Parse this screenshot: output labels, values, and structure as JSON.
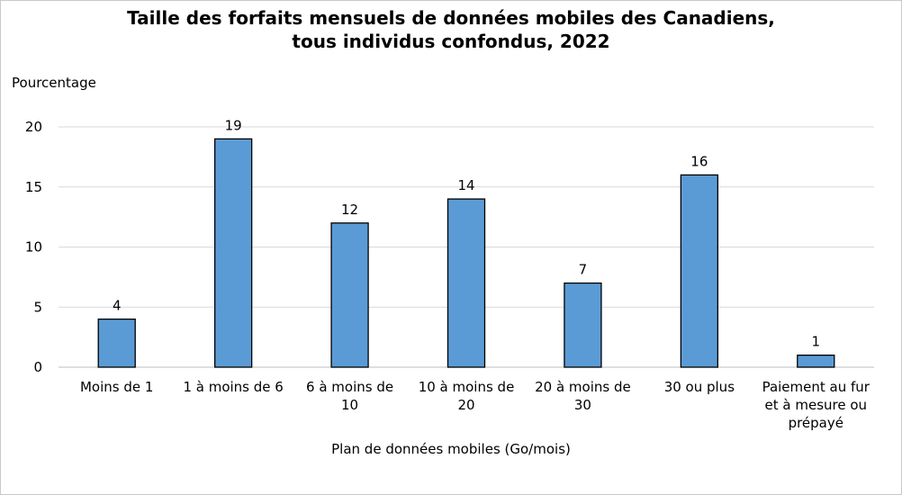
{
  "chart_data": {
    "type": "bar",
    "title_lines": [
      "Taille des forfaits mensuels de données mobiles des Canadiens,",
      "tous individus confondus, 2022"
    ],
    "ylabel": "Pourcentage",
    "xlabel": "Plan de données mobiles (Go/mois)",
    "categories": [
      [
        "Moins de 1"
      ],
      [
        "1 à moins de 6"
      ],
      [
        "6 à moins de",
        "10"
      ],
      [
        "10 à moins de",
        "20"
      ],
      [
        "20 à moins de",
        "30"
      ],
      [
        "30 ou plus"
      ],
      [
        "Paiement au fur",
        "et à mesure ou",
        "prépayé"
      ]
    ],
    "values": [
      4,
      19,
      12,
      14,
      7,
      16,
      1
    ],
    "ylim": [
      0,
      20
    ],
    "yticks": [
      0,
      5,
      10,
      15,
      20
    ],
    "grid": true,
    "colors": {
      "bar": "#5b9bd5",
      "bar_border": "#000000",
      "grid": "#d9d9d9"
    }
  }
}
